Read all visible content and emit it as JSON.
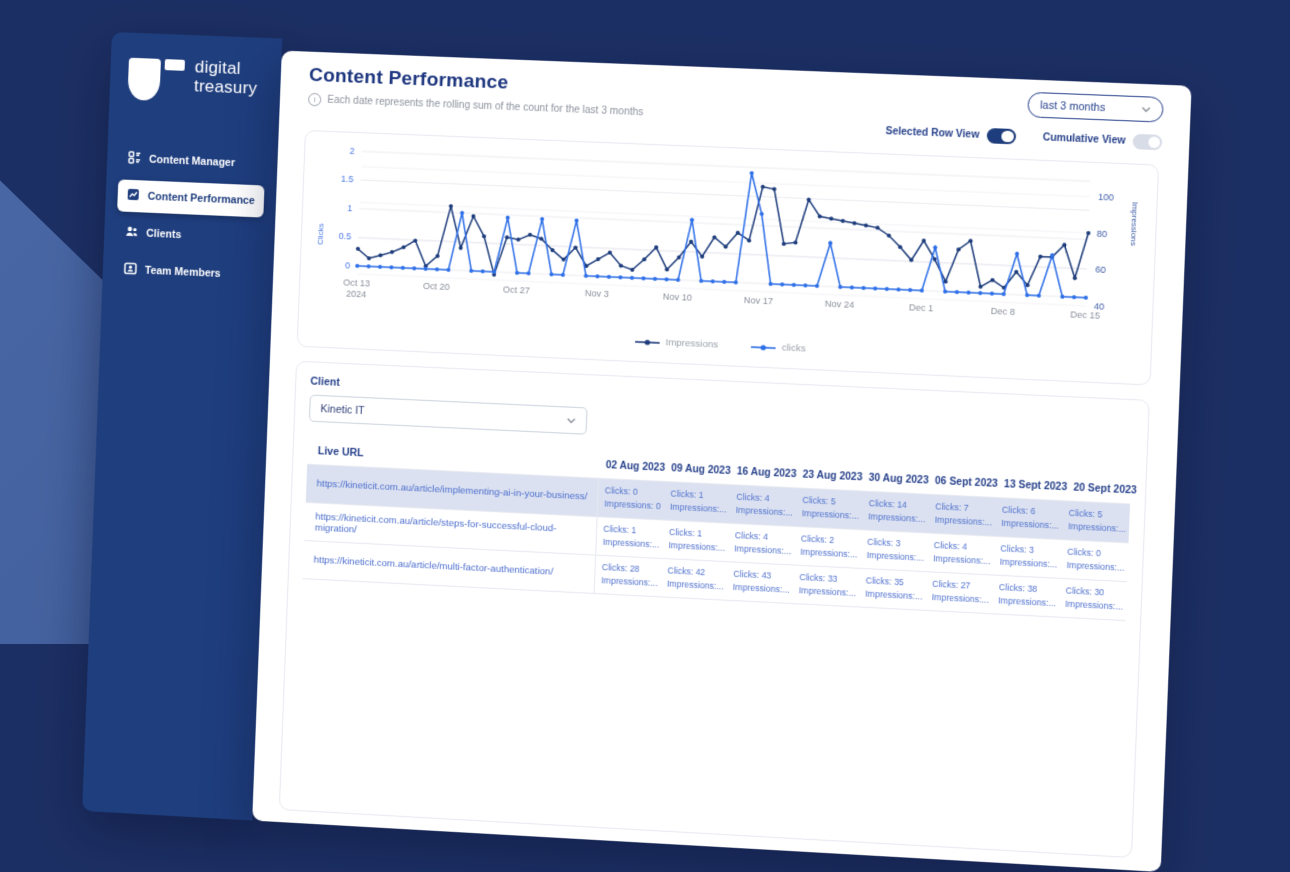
{
  "brand": {
    "name_line1": "digital",
    "name_line2": "treasury"
  },
  "icons": {
    "info": "i"
  },
  "colors": {
    "bg_dark": "#1c2f64",
    "bg_light": "#43619e",
    "sidebar_bg": "#1f3e7e",
    "accent_navy": "#1e3d7c",
    "accent_blue": "#2e6fe8",
    "selected_row_bg": "#dbe1f0"
  },
  "sidebar": {
    "items": [
      {
        "label": "Content Manager"
      },
      {
        "label": "Content Performance",
        "active": true
      },
      {
        "label": "Clients"
      },
      {
        "label": "Team Members"
      }
    ]
  },
  "header": {
    "title": "Content Performance",
    "subtitle": "Each date represents the rolling sum of the count for the last 3 months",
    "date_range": "last 3 months",
    "selected_row_view_label": "Selected Row View",
    "selected_row_view_on": true,
    "cumulative_view_label": "Cumulative View",
    "cumulative_view_on": false
  },
  "chart_data": {
    "type": "line",
    "x_start": "Oct 13 2024",
    "x_end": "Dec 15 2024",
    "x_interval": "daily",
    "x_tick_labels": [
      "Oct 13\n2024",
      "Oct 20",
      "Oct 27",
      "Nov 3",
      "Nov 10",
      "Nov 17",
      "Nov 24",
      "Dec 1",
      "Dec 8",
      "Dec 15"
    ],
    "x_tick_positions": [
      0,
      7,
      14,
      21,
      28,
      35,
      42,
      49,
      56,
      63
    ],
    "left_axis": {
      "label": "Clicks",
      "ticks": [
        0,
        0.5,
        1,
        1.5,
        2
      ],
      "range": [
        0,
        2
      ]
    },
    "right_axis": {
      "label": "Impressions",
      "ticks": [
        40,
        60,
        80,
        100
      ],
      "range": [
        40,
        100
      ]
    },
    "legend": [
      "Impressions",
      "clicks"
    ],
    "grid": true,
    "series": [
      {
        "name": "Impressions",
        "axis": "right",
        "color": "#1e3d7c",
        "values": [
          54,
          49,
          51,
          53,
          56,
          60,
          46,
          52,
          80,
          57,
          75,
          64,
          43,
          64,
          63,
          66,
          64,
          58,
          53,
          60,
          50,
          54,
          58,
          51,
          49,
          55,
          62,
          50,
          57,
          66,
          58,
          69,
          64,
          72,
          68,
          98,
          97,
          67,
          68,
          92,
          83,
          82,
          81,
          80,
          79,
          78,
          74,
          68,
          61,
          72,
          62,
          50,
          68,
          73,
          48,
          52,
          48,
          57,
          50,
          66,
          66,
          73,
          55,
          80
        ]
      },
      {
        "name": "clicks",
        "axis": "left",
        "color": "#2e6fe8",
        "values": [
          0,
          0,
          0,
          0,
          0,
          0,
          0,
          0,
          0,
          1,
          0,
          0,
          0,
          0.95,
          0,
          0,
          0.95,
          0,
          0,
          0.95,
          0,
          0,
          0,
          0,
          0,
          0,
          0,
          0,
          0,
          1.05,
          0,
          0,
          0,
          0,
          1.9,
          1.2,
          0,
          0,
          0,
          0,
          0,
          0.75,
          0,
          0,
          0,
          0,
          0,
          0,
          0,
          0,
          0.75,
          0,
          0,
          0,
          0,
          0,
          0,
          0.7,
          0,
          0,
          0.7,
          0,
          0,
          0
        ]
      }
    ]
  },
  "filters": {
    "client_label": "Client",
    "client_value": "Kinetic IT"
  },
  "table": {
    "columns": [
      "Live URL",
      "02 Aug 2023",
      "09 Aug 2023",
      "16 Aug 2023",
      "23 Aug 2023",
      "30 Aug 2023",
      "06 Sept 2023",
      "13 Sept 2023",
      "20 Sept 2023"
    ],
    "rows": [
      {
        "url": "https://kineticit.com.au/article/implementing-ai-in-your-business/",
        "selected": true,
        "cells": [
          {
            "clicks": "Clicks: 0",
            "impressions": "Impressions: 0"
          },
          {
            "clicks": "Clicks: 1",
            "impressions": "Impressions:..."
          },
          {
            "clicks": "Clicks: 4",
            "impressions": "Impressions:..."
          },
          {
            "clicks": "Clicks: 5",
            "impressions": "Impressions:..."
          },
          {
            "clicks": "Clicks: 14",
            "impressions": "Impressions:..."
          },
          {
            "clicks": "Clicks: 7",
            "impressions": "Impressions:..."
          },
          {
            "clicks": "Clicks: 6",
            "impressions": "Impressions:..."
          },
          {
            "clicks": "Clicks: 5",
            "impressions": "Impressions:..."
          }
        ]
      },
      {
        "url": "https://kineticit.com.au/article/steps-for-successful-cloud-migration/",
        "selected": false,
        "cells": [
          {
            "clicks": "Clicks: 1",
            "impressions": "Impressions:..."
          },
          {
            "clicks": "Clicks: 1",
            "impressions": "Impressions:..."
          },
          {
            "clicks": "Clicks: 4",
            "impressions": "Impressions:..."
          },
          {
            "clicks": "Clicks: 2",
            "impressions": "Impressions:..."
          },
          {
            "clicks": "Clicks: 3",
            "impressions": "Impressions:..."
          },
          {
            "clicks": "Clicks: 4",
            "impressions": "Impressions:..."
          },
          {
            "clicks": "Clicks: 3",
            "impressions": "Impressions:..."
          },
          {
            "clicks": "Clicks: 0",
            "impressions": "Impressions:..."
          }
        ]
      },
      {
        "url": "https://kineticit.com.au/article/multi-factor-authentication/",
        "selected": false,
        "cells": [
          {
            "clicks": "Clicks: 28",
            "impressions": "Impressions:..."
          },
          {
            "clicks": "Clicks: 42",
            "impressions": "Impressions:..."
          },
          {
            "clicks": "Clicks: 43",
            "impressions": "Impressions:..."
          },
          {
            "clicks": "Clicks: 33",
            "impressions": "Impressions:..."
          },
          {
            "clicks": "Clicks: 35",
            "impressions": "Impressions:..."
          },
          {
            "clicks": "Clicks: 27",
            "impressions": "Impressions:..."
          },
          {
            "clicks": "Clicks: 38",
            "impressions": "Impressions:..."
          },
          {
            "clicks": "Clicks: 30",
            "impressions": "Impressions:..."
          }
        ]
      }
    ]
  }
}
